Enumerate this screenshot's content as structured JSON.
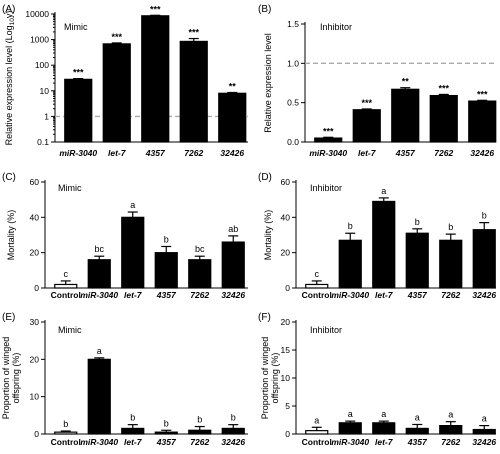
{
  "chart_data": [
    {
      "panel": "(A)",
      "type": "bar",
      "inset_label": "Mimic",
      "ylabel": "Relative expression level (Log10y)",
      "ylabel_parts": [
        "Relative expression level (Log",
        "10",
        "y)"
      ],
      "yscale": "log",
      "ylim": [
        0.1,
        10000
      ],
      "yticks": [
        0.1,
        1,
        10,
        100,
        1000,
        10000
      ],
      "ytick_labels": [
        "0.1",
        "1",
        "10",
        "100",
        "1000",
        "10000"
      ],
      "categories": [
        "miR-3040",
        "let-7",
        "4357",
        "7262",
        "32426"
      ],
      "values": [
        28,
        680,
        8500,
        850,
        8
      ],
      "errors": [
        2,
        60,
        400,
        250,
        0.6
      ],
      "annotations": [
        "***",
        "***",
        "***",
        "***",
        "**"
      ],
      "reference_line": 1,
      "bar_fill": "#000000"
    },
    {
      "panel": "(B)",
      "type": "bar",
      "inset_label": "Inhibitor",
      "ylabel": "Relative expression level",
      "yscale": "linear",
      "ylim": [
        0,
        1.5
      ],
      "yticks": [
        0,
        0.5,
        1.0,
        1.5
      ],
      "ytick_labels": [
        "0.0",
        "0.5",
        "1.0",
        "1.5"
      ],
      "categories": [
        "miR-3040",
        "let-7",
        "4357",
        "7262",
        "32426"
      ],
      "values": [
        0.05,
        0.41,
        0.67,
        0.59,
        0.52
      ],
      "errors": [
        0.01,
        0.01,
        0.02,
        0.015,
        0.01
      ],
      "annotations": [
        "***",
        "***",
        "**",
        "***",
        "***"
      ],
      "reference_line": 1.0,
      "bar_fill": "#000000"
    },
    {
      "panel": "(C)",
      "type": "bar",
      "inset_label": "Mimic",
      "ylabel": "Mortality (%)",
      "yscale": "linear",
      "ylim": [
        0,
        60
      ],
      "yticks": [
        0,
        20,
        40,
        60
      ],
      "ytick_labels": [
        "0",
        "20",
        "40",
        "60"
      ],
      "categories": [
        "Control",
        "miR-3040",
        "let-7",
        "4357",
        "7262",
        "32426"
      ],
      "values": [
        2,
        16,
        40,
        20,
        16,
        26
      ],
      "errors": [
        2,
        2,
        3,
        3.5,
        2,
        3.5
      ],
      "annotations": [
        "c",
        "bc",
        "a",
        "b",
        "bc",
        "ab"
      ],
      "bar_fills": [
        "#ffffff",
        "#000000",
        "#000000",
        "#000000",
        "#000000",
        "#000000"
      ]
    },
    {
      "panel": "(D)",
      "type": "bar",
      "inset_label": "Inhibitor",
      "ylabel": "Mortality (%)",
      "yscale": "linear",
      "ylim": [
        0,
        60
      ],
      "yticks": [
        0,
        20,
        40,
        60
      ],
      "ytick_labels": [
        "0",
        "20",
        "40",
        "60"
      ],
      "categories": [
        "Control",
        "miR-3040",
        "let-7",
        "4357",
        "7262",
        "32426"
      ],
      "values": [
        2,
        27,
        49,
        31,
        27,
        33
      ],
      "errors": [
        2,
        4,
        2,
        2.5,
        3.5,
        4
      ],
      "annotations": [
        "c",
        "b",
        "a",
        "b",
        "b",
        "b"
      ],
      "bar_fills": [
        "#ffffff",
        "#000000",
        "#000000",
        "#000000",
        "#000000",
        "#000000"
      ]
    },
    {
      "panel": "(E)",
      "type": "bar",
      "inset_label": "Mimic",
      "ylabel": "Proportion of winged offspring (%)",
      "ylabel_lines": [
        "Proportion of winged",
        "offspring (%)"
      ],
      "yscale": "linear",
      "ylim": [
        0,
        30
      ],
      "yticks": [
        0,
        10,
        20,
        30
      ],
      "ytick_labels": [
        "0",
        "10",
        "20",
        "30"
      ],
      "categories": [
        "Control",
        "miR-3040",
        "let-7",
        "4357",
        "7262",
        "32426"
      ],
      "values": [
        0.5,
        20,
        1.5,
        0.5,
        1,
        1.5
      ],
      "errors": [
        0.3,
        0.4,
        1,
        0.5,
        1,
        1
      ],
      "annotations": [
        "b",
        "a",
        "b",
        "b",
        "b",
        "b"
      ],
      "bar_fills": [
        "#ffffff",
        "#000000",
        "#000000",
        "#000000",
        "#000000",
        "#000000"
      ]
    },
    {
      "panel": "(F)",
      "type": "bar",
      "inset_label": "Inhibitor",
      "ylabel": "Proportion of winged offspring (%)",
      "ylabel_lines": [
        "Proportion of winged",
        "offspring (%)"
      ],
      "yscale": "linear",
      "ylim": [
        0,
        20
      ],
      "yticks": [
        0,
        5,
        10,
        15,
        20
      ],
      "ytick_labels": [
        "0",
        "5",
        "10",
        "15",
        "20"
      ],
      "categories": [
        "Control",
        "miR-3040",
        "let-7",
        "4357",
        "7262",
        "32426"
      ],
      "values": [
        0.6,
        2,
        2,
        1,
        1.5,
        0.8
      ],
      "errors": [
        0.6,
        0.3,
        0.3,
        0.7,
        0.7,
        0.7
      ],
      "annotations": [
        "a",
        "a",
        "a",
        "a",
        "a",
        "a"
      ],
      "bar_fills": [
        "#ffffff",
        "#000000",
        "#000000",
        "#000000",
        "#000000",
        "#000000"
      ]
    }
  ]
}
